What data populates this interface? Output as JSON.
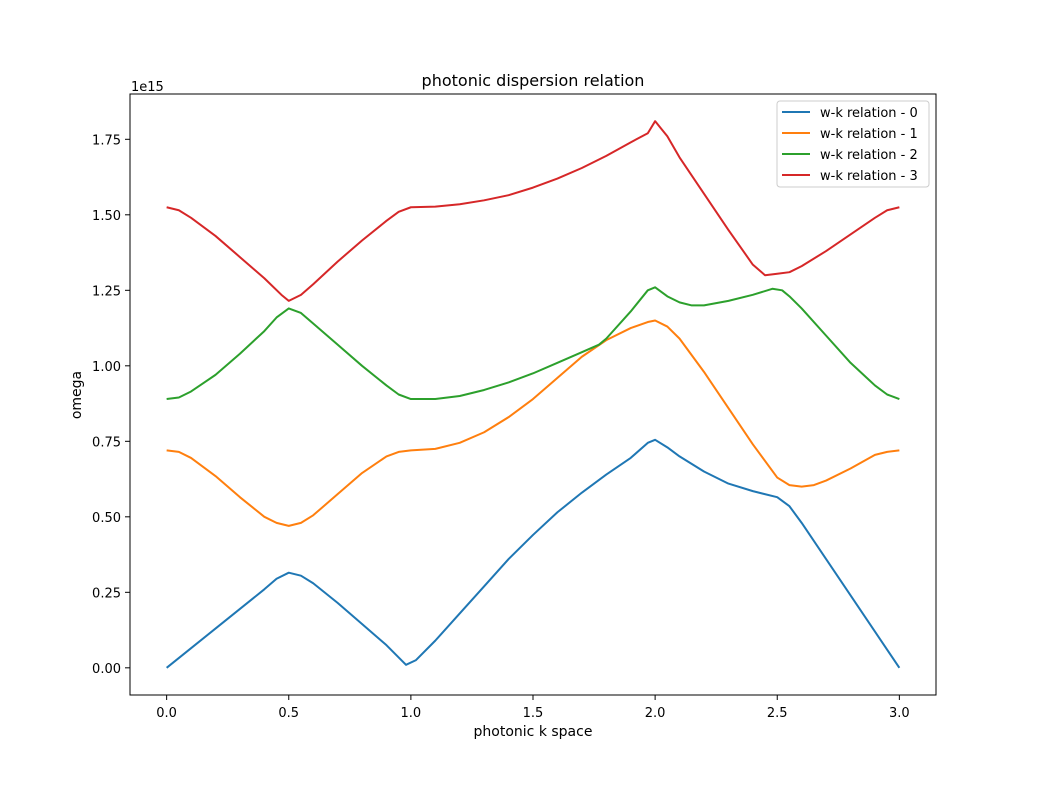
{
  "chart_data": {
    "type": "line",
    "title": "photonic dispersion relation",
    "xlabel": "photonic k space",
    "ylabel": "omega",
    "y_offset_label": "1e15",
    "y_scale": 1000000000000000.0,
    "xlim": [
      -0.15,
      3.15
    ],
    "ylim": [
      -0.09,
      1.9
    ],
    "xticks": [
      0.0,
      0.5,
      1.0,
      1.5,
      2.0,
      2.5,
      3.0
    ],
    "xtick_labels": [
      "0.0",
      "0.5",
      "1.0",
      "1.5",
      "2.0",
      "2.5",
      "3.0"
    ],
    "yticks": [
      0.0,
      0.25,
      0.5,
      0.75,
      1.0,
      1.25,
      1.5,
      1.75
    ],
    "ytick_labels": [
      "0.00",
      "0.25",
      "0.50",
      "0.75",
      "1.00",
      "1.25",
      "1.50",
      "1.75"
    ],
    "grid": false,
    "legend_position": "top-right",
    "series": [
      {
        "name": "w-k relation - 0",
        "color": "#1f77b4",
        "points": [
          [
            0.0,
            0.0
          ],
          [
            0.1,
            0.065
          ],
          [
            0.2,
            0.13
          ],
          [
            0.3,
            0.195
          ],
          [
            0.4,
            0.26
          ],
          [
            0.45,
            0.295
          ],
          [
            0.5,
            0.315
          ],
          [
            0.55,
            0.305
          ],
          [
            0.6,
            0.28
          ],
          [
            0.7,
            0.215
          ],
          [
            0.8,
            0.145
          ],
          [
            0.9,
            0.075
          ],
          [
            0.98,
            0.01
          ],
          [
            1.02,
            0.025
          ],
          [
            1.1,
            0.09
          ],
          [
            1.2,
            0.18
          ],
          [
            1.3,
            0.27
          ],
          [
            1.4,
            0.36
          ],
          [
            1.5,
            0.44
          ],
          [
            1.6,
            0.515
          ],
          [
            1.7,
            0.58
          ],
          [
            1.8,
            0.64
          ],
          [
            1.9,
            0.695
          ],
          [
            1.97,
            0.745
          ],
          [
            2.0,
            0.755
          ],
          [
            2.05,
            0.73
          ],
          [
            2.1,
            0.7
          ],
          [
            2.2,
            0.65
          ],
          [
            2.3,
            0.61
          ],
          [
            2.4,
            0.585
          ],
          [
            2.5,
            0.565
          ],
          [
            2.55,
            0.535
          ],
          [
            2.6,
            0.48
          ],
          [
            2.7,
            0.36
          ],
          [
            2.8,
            0.24
          ],
          [
            2.9,
            0.12
          ],
          [
            3.0,
            0.0
          ]
        ]
      },
      {
        "name": "w-k relation - 1",
        "color": "#ff7f0e",
        "points": [
          [
            0.0,
            0.72
          ],
          [
            0.05,
            0.715
          ],
          [
            0.1,
            0.695
          ],
          [
            0.2,
            0.635
          ],
          [
            0.3,
            0.565
          ],
          [
            0.4,
            0.5
          ],
          [
            0.45,
            0.48
          ],
          [
            0.5,
            0.47
          ],
          [
            0.55,
            0.48
          ],
          [
            0.6,
            0.505
          ],
          [
            0.7,
            0.575
          ],
          [
            0.8,
            0.645
          ],
          [
            0.9,
            0.7
          ],
          [
            0.95,
            0.715
          ],
          [
            1.0,
            0.72
          ],
          [
            1.1,
            0.725
          ],
          [
            1.2,
            0.745
          ],
          [
            1.3,
            0.78
          ],
          [
            1.4,
            0.83
          ],
          [
            1.5,
            0.89
          ],
          [
            1.6,
            0.96
          ],
          [
            1.7,
            1.03
          ],
          [
            1.8,
            1.085
          ],
          [
            1.9,
            1.125
          ],
          [
            1.97,
            1.145
          ],
          [
            2.0,
            1.15
          ],
          [
            2.05,
            1.13
          ],
          [
            2.1,
            1.09
          ],
          [
            2.2,
            0.98
          ],
          [
            2.3,
            0.86
          ],
          [
            2.4,
            0.74
          ],
          [
            2.5,
            0.63
          ],
          [
            2.55,
            0.605
          ],
          [
            2.6,
            0.6
          ],
          [
            2.65,
            0.605
          ],
          [
            2.7,
            0.62
          ],
          [
            2.8,
            0.66
          ],
          [
            2.9,
            0.705
          ],
          [
            2.95,
            0.715
          ],
          [
            3.0,
            0.72
          ]
        ]
      },
      {
        "name": "w-k relation - 2",
        "color": "#2ca02c",
        "points": [
          [
            0.0,
            0.89
          ],
          [
            0.05,
            0.895
          ],
          [
            0.1,
            0.915
          ],
          [
            0.2,
            0.97
          ],
          [
            0.3,
            1.04
          ],
          [
            0.4,
            1.115
          ],
          [
            0.45,
            1.16
          ],
          [
            0.5,
            1.19
          ],
          [
            0.55,
            1.175
          ],
          [
            0.6,
            1.14
          ],
          [
            0.7,
            1.07
          ],
          [
            0.8,
            1.0
          ],
          [
            0.9,
            0.935
          ],
          [
            0.95,
            0.905
          ],
          [
            1.0,
            0.89
          ],
          [
            1.1,
            0.89
          ],
          [
            1.2,
            0.9
          ],
          [
            1.3,
            0.92
          ],
          [
            1.4,
            0.945
          ],
          [
            1.5,
            0.975
          ],
          [
            1.6,
            1.01
          ],
          [
            1.7,
            1.045
          ],
          [
            1.77,
            1.07
          ],
          [
            1.8,
            1.09
          ],
          [
            1.9,
            1.18
          ],
          [
            1.97,
            1.25
          ],
          [
            2.0,
            1.26
          ],
          [
            2.05,
            1.23
          ],
          [
            2.1,
            1.21
          ],
          [
            2.15,
            1.2
          ],
          [
            2.2,
            1.2
          ],
          [
            2.3,
            1.215
          ],
          [
            2.4,
            1.235
          ],
          [
            2.48,
            1.255
          ],
          [
            2.52,
            1.25
          ],
          [
            2.55,
            1.23
          ],
          [
            2.6,
            1.19
          ],
          [
            2.7,
            1.1
          ],
          [
            2.8,
            1.01
          ],
          [
            2.9,
            0.935
          ],
          [
            2.95,
            0.905
          ],
          [
            3.0,
            0.89
          ]
        ]
      },
      {
        "name": "w-k relation - 3",
        "color": "#d62728",
        "points": [
          [
            0.0,
            1.525
          ],
          [
            0.05,
            1.515
          ],
          [
            0.1,
            1.49
          ],
          [
            0.2,
            1.43
          ],
          [
            0.3,
            1.36
          ],
          [
            0.4,
            1.29
          ],
          [
            0.47,
            1.235
          ],
          [
            0.5,
            1.215
          ],
          [
            0.55,
            1.235
          ],
          [
            0.6,
            1.27
          ],
          [
            0.7,
            1.345
          ],
          [
            0.8,
            1.415
          ],
          [
            0.9,
            1.48
          ],
          [
            0.95,
            1.51
          ],
          [
            1.0,
            1.525
          ],
          [
            1.1,
            1.527
          ],
          [
            1.2,
            1.535
          ],
          [
            1.3,
            1.548
          ],
          [
            1.4,
            1.565
          ],
          [
            1.5,
            1.59
          ],
          [
            1.6,
            1.62
          ],
          [
            1.7,
            1.655
          ],
          [
            1.8,
            1.695
          ],
          [
            1.9,
            1.74
          ],
          [
            1.97,
            1.77
          ],
          [
            2.0,
            1.81
          ],
          [
            2.05,
            1.76
          ],
          [
            2.1,
            1.69
          ],
          [
            2.2,
            1.57
          ],
          [
            2.3,
            1.45
          ],
          [
            2.4,
            1.335
          ],
          [
            2.45,
            1.3
          ],
          [
            2.5,
            1.305
          ],
          [
            2.55,
            1.31
          ],
          [
            2.6,
            1.33
          ],
          [
            2.7,
            1.38
          ],
          [
            2.8,
            1.435
          ],
          [
            2.9,
            1.49
          ],
          [
            2.95,
            1.515
          ],
          [
            3.0,
            1.525
          ]
        ]
      }
    ]
  }
}
